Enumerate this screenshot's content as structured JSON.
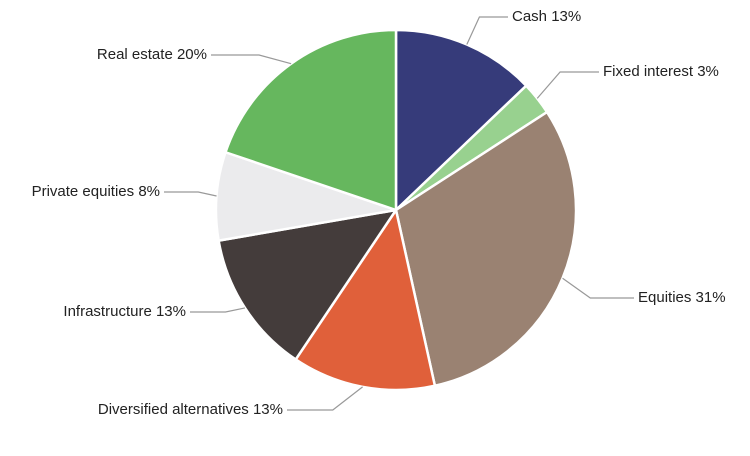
{
  "chart_data": {
    "type": "pie",
    "categories": [
      "Cash",
      "Fixed interest",
      "Equities",
      "Diversified alternatives",
      "Infrastructure",
      "Private equities",
      "Real estate"
    ],
    "values": [
      13,
      3,
      31,
      13,
      13,
      8,
      20
    ],
    "value_labels": [
      "13%",
      "3%",
      "31%",
      "13%",
      "13%",
      "8%",
      "20%"
    ],
    "colors": [
      "#363b7a",
      "#98d18f",
      "#9a8272",
      "#e0603a",
      "#443c3b",
      "#ebebed",
      "#66b75e"
    ]
  }
}
